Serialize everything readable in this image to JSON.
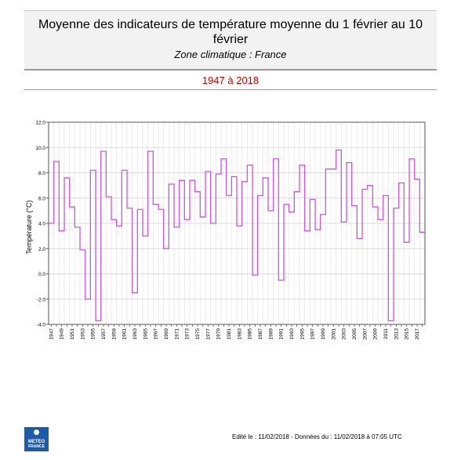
{
  "header": {
    "title": "Moyenne des indicateurs de température moyenne du 1 février au 10 février",
    "subtitle": "Zone climatique : France"
  },
  "period": "1947 à 2018",
  "footer": "Edité le : 11/02/2018 - Données du : 11/02/2018 à 07:05 UTC",
  "logo": {
    "icon": "meteo-france-logo",
    "line1": "METEO",
    "line2": "FRANCE",
    "color": "#1d5aa8"
  },
  "chart_data": {
    "type": "line",
    "step": true,
    "ylabel": "Température (°C)",
    "ylim": [
      -4.0,
      12.0
    ],
    "yticks": [
      "12.0",
      "10.0",
      "8.0",
      "6.0",
      "4.0",
      "2.0",
      "0.0",
      "-2.0",
      "-4.0"
    ],
    "grid": true,
    "color": "#cc55dd",
    "series": [
      {
        "x": [
          1947,
          1948,
          1949,
          1950,
          1951,
          1952,
          1953,
          1954,
          1955,
          1956,
          1957,
          1958,
          1959,
          1960,
          1961,
          1962,
          1963,
          1964,
          1965,
          1966,
          1967,
          1968,
          1969,
          1970,
          1971,
          1972,
          1973,
          1974,
          1975,
          1976,
          1977,
          1978,
          1979,
          1980,
          1981,
          1982,
          1983,
          1984,
          1985,
          1986,
          1987,
          1988,
          1989,
          1990,
          1991,
          1992,
          1993,
          1994,
          1995,
          1996,
          1997,
          1998,
          1999,
          2000,
          2001,
          2002,
          2003,
          2004,
          2005,
          2006,
          2007,
          2008,
          2009,
          2010,
          2011,
          2012,
          2013,
          2014,
          2015,
          2016,
          2017,
          2018
        ],
        "values": [
          4.0,
          8.9,
          3.4,
          7.6,
          5.3,
          3.7,
          1.9,
          -2.0,
          8.2,
          -3.7,
          9.7,
          6.1,
          4.3,
          3.8,
          8.2,
          5.2,
          -1.5,
          5.1,
          3.0,
          9.7,
          5.5,
          5.1,
          2.0,
          7.1,
          3.7,
          7.4,
          4.3,
          7.4,
          6.5,
          4.5,
          8.1,
          4.0,
          7.9,
          9.1,
          6.2,
          7.7,
          3.8,
          7.3,
          8.6,
          -0.1,
          6.2,
          7.6,
          5.0,
          9.1,
          -0.5,
          5.5,
          4.9,
          6.5,
          8.6,
          3.4,
          5.9,
          3.5,
          4.7,
          8.3,
          8.3,
          9.8,
          4.1,
          8.8,
          5.4,
          2.8,
          6.7,
          7.0,
          5.3,
          4.3,
          6.2,
          -3.7,
          5.2,
          7.2,
          2.5,
          9.1,
          7.5,
          3.3
        ]
      }
    ]
  }
}
